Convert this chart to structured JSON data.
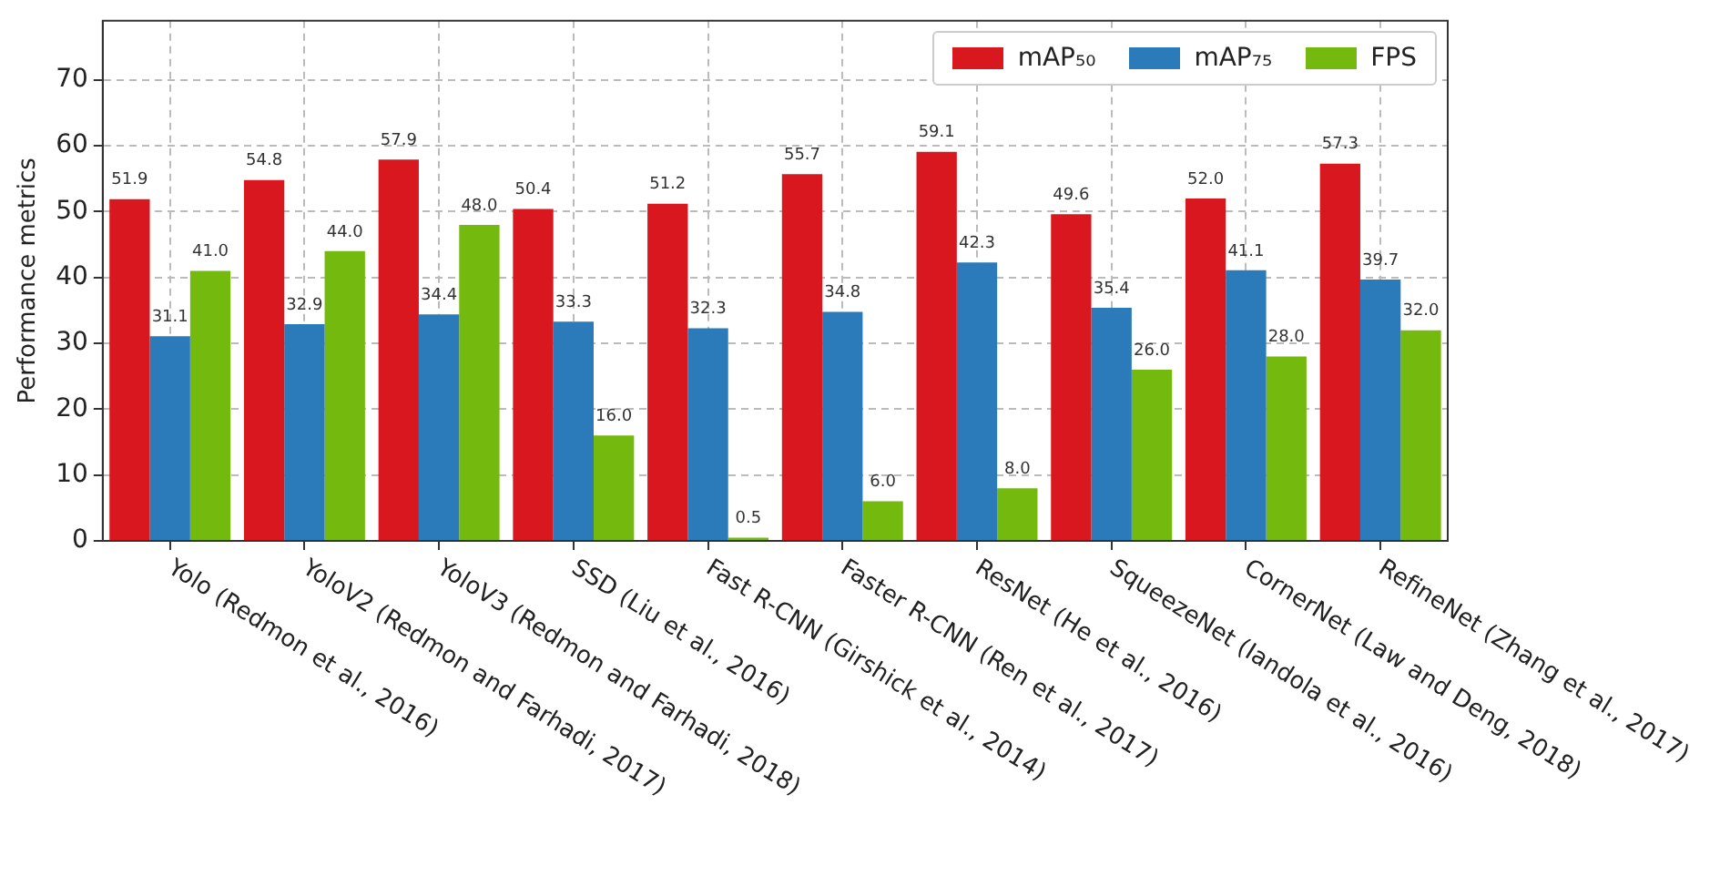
{
  "chart_data": {
    "type": "bar",
    "ylabel": "Performance metrics",
    "categories": [
      "Yolo (Redmon et al., 2016)",
      "YoloV2 (Redmon and Farhadi, 2017)",
      "YoloV3 (Redmon and Farhadi, 2018)",
      "SSD (Liu et al., 2016)",
      "Fast R-CNN (Girshick et al., 2014)",
      "Faster R-CNN (Ren et al., 2017)",
      "ResNet (He et al., 2016)",
      "SqueezeNet (Iandola et al., 2016)",
      "CornerNet (Law and Deng, 2018)",
      "RefineNet (Zhang et al., 2017)"
    ],
    "series": [
      {
        "name": "mAP₅₀",
        "color": "#d8181e",
        "values": [
          51.9,
          54.8,
          57.9,
          50.4,
          51.2,
          55.7,
          59.1,
          49.6,
          52.0,
          57.3
        ],
        "value_labels": [
          "51.9",
          "54.8",
          "57.9",
          "50.4",
          "51.2",
          "55.7",
          "59.1",
          "49.6",
          "52.0",
          "57.3"
        ]
      },
      {
        "name": "mAP₇₅",
        "color": "#2b7bba",
        "values": [
          31.1,
          32.9,
          34.4,
          33.3,
          32.3,
          34.8,
          42.3,
          35.4,
          41.1,
          39.7
        ],
        "value_labels": [
          "31.1",
          "32.9",
          "34.4",
          "33.3",
          "32.3",
          "34.8",
          "42.3",
          "35.4",
          "41.1",
          "39.7"
        ]
      },
      {
        "name": "FPS",
        "color": "#73b90e",
        "values": [
          41.0,
          44.0,
          48.0,
          16.0,
          0.5,
          6.0,
          8.0,
          26.0,
          28.0,
          32.0
        ],
        "value_labels": [
          "41.0",
          "44.0",
          "48.0",
          "16.0",
          "0.5",
          "6.0",
          "8.0",
          "26.0",
          "28.0",
          "32.0"
        ]
      }
    ],
    "ylim": [
      0,
      79
    ],
    "yticks": [
      0,
      10,
      20,
      30,
      40,
      50,
      60,
      70
    ],
    "grid": true,
    "legend": "top right"
  }
}
